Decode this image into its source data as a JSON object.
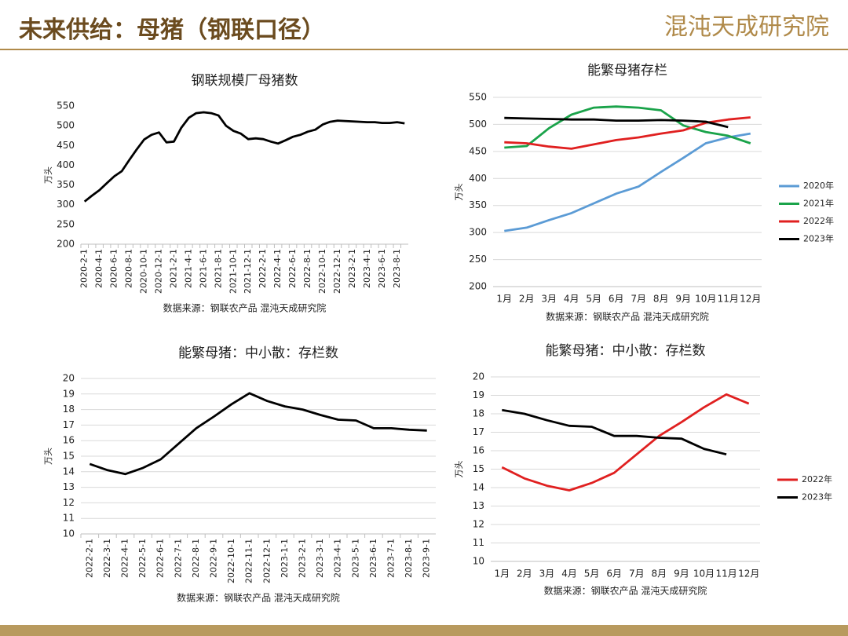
{
  "header": {
    "title": "未来供给：母猪（钢联口径）",
    "logo": "混沌天成研究院"
  },
  "chart_data": [
    {
      "type": "line",
      "title": "钢联规模厂母猪数",
      "y_label": "万头",
      "source": "数据来源：钢联农产品 混沌天成研究院",
      "categories": [
        "2020-2-1",
        null,
        "2020-4-1",
        null,
        "2020-6-1",
        null,
        "2020-8-1",
        null,
        "2020-10-1",
        null,
        "2020-12-1",
        null,
        "2021-2-1",
        null,
        "2021-4-1",
        null,
        "2021-6-1",
        null,
        "2021-8-1",
        null,
        "2021-10-1",
        null,
        "2021-12-1",
        null,
        "2022-2-1",
        null,
        "2022-4-1",
        null,
        "2022-6-1",
        null,
        "2022-8-1",
        null,
        "2022-10-1",
        null,
        "2022-12-1",
        null,
        "2023-2-1",
        null,
        "2023-4-1",
        null,
        "2023-6-1",
        null,
        "2023-8-1",
        null
      ],
      "series": [
        {
          "name": null,
          "color": "#000000",
          "values": [
            308,
            323,
            337,
            355,
            372,
            385,
            413,
            440,
            465,
            477,
            483,
            458,
            460,
            495,
            520,
            532,
            534,
            532,
            526,
            500,
            487,
            480,
            466,
            468,
            466,
            460,
            455,
            463,
            472,
            477,
            485,
            490,
            503,
            510,
            513,
            512,
            511,
            510,
            509,
            509,
            507,
            507,
            509,
            506
          ]
        }
      ],
      "ylim": [
        200,
        550
      ],
      "yticks": [
        200,
        250,
        300,
        350,
        400,
        450,
        500,
        550
      ],
      "grid": false
    },
    {
      "type": "line",
      "title": "能繁母猪存栏",
      "y_label": "万头",
      "source": "数据来源：钢联农产品 混沌天成研究院",
      "categories": [
        "1月",
        "2月",
        "3月",
        "4月",
        "5月",
        "6月",
        "7月",
        "8月",
        "9月",
        "10月",
        "11月",
        "12月"
      ],
      "series": [
        {
          "name": "2020年",
          "color": "#5b9bd5",
          "values": [
            303,
            309,
            323,
            336,
            354,
            372,
            385,
            412,
            438,
            465,
            476,
            483
          ]
        },
        {
          "name": "2021年",
          "color": "#1aa34a",
          "values": [
            457,
            460,
            493,
            518,
            531,
            533,
            531,
            526,
            498,
            486,
            479,
            465
          ]
        },
        {
          "name": "2022年",
          "color": "#e02020",
          "values": [
            467,
            465,
            459,
            455,
            463,
            471,
            476,
            483,
            489,
            503,
            509,
            513
          ]
        },
        {
          "name": "2023年",
          "color": "#000000",
          "values": [
            512,
            511,
            510,
            509,
            509,
            507,
            507,
            508,
            507,
            505,
            495,
            null
          ]
        }
      ],
      "ylim": [
        200,
        550
      ],
      "yticks": [
        200,
        250,
        300,
        350,
        400,
        450,
        500,
        550
      ],
      "grid": true,
      "legend": "right"
    },
    {
      "type": "line",
      "title": "能繁母猪：中小散：存栏数",
      "y_label": "万头",
      "source": "数据来源：钢联农产品 混沌天成研究院",
      "categories": [
        "2022-2-1",
        "2022-3-1",
        "2022-4-1",
        "2022-5-1",
        "2022-6-1",
        "2022-7-1",
        "2022-8-1",
        "2022-9-1",
        "2022-10-1",
        "2022-11-1",
        "2022-12-1",
        "2023-1-1",
        "2023-2-1",
        "2023-3-1",
        "2023-4-1",
        "2023-5-1",
        "2023-6-1",
        "2023-7-1",
        "2023-8-1",
        "2023-9-1"
      ],
      "series": [
        {
          "name": null,
          "color": "#000000",
          "values": [
            14.5,
            14.1,
            13.85,
            14.25,
            14.8,
            15.8,
            16.8,
            17.55,
            18.35,
            19.05,
            18.55,
            18.2,
            18.0,
            17.65,
            17.35,
            17.3,
            16.8,
            16.8,
            16.7,
            16.65
          ]
        }
      ],
      "ylim": [
        10,
        20
      ],
      "yticks": [
        10,
        11,
        12,
        13,
        14,
        15,
        16,
        17,
        18,
        19,
        20
      ],
      "grid": true
    },
    {
      "type": "line",
      "title": "能繁母猪：中小散：存栏数",
      "y_label": "万头",
      "source": "数据来源：钢联农产品 混沌天成研究院",
      "categories": [
        "1月",
        "2月",
        "3月",
        "4月",
        "5月",
        "6月",
        "7月",
        "8月",
        "9月",
        "10月",
        "11月",
        "12月"
      ],
      "series": [
        {
          "name": "2022年",
          "color": "#e02020",
          "values": [
            15.1,
            14.5,
            14.1,
            13.85,
            14.25,
            14.8,
            15.8,
            16.8,
            17.55,
            18.35,
            19.05,
            18.55
          ]
        },
        {
          "name": "2023年",
          "color": "#000000",
          "values": [
            18.2,
            18.0,
            17.65,
            17.35,
            17.3,
            16.8,
            16.8,
            16.7,
            16.65,
            16.1,
            15.8,
            null
          ]
        }
      ],
      "ylim": [
        10,
        20
      ],
      "yticks": [
        10,
        11,
        12,
        13,
        14,
        15,
        16,
        17,
        18,
        19,
        20
      ],
      "grid": true,
      "legend": "right"
    }
  ]
}
